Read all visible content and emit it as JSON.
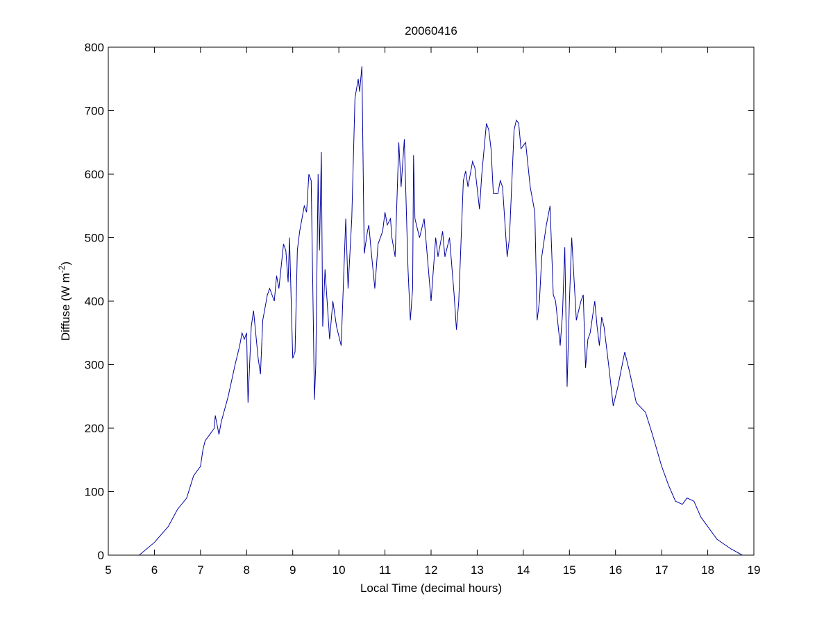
{
  "chart_data": {
    "type": "line",
    "title": "20060416",
    "xlabel": "Local Time (decimal hours)",
    "ylabel": {
      "text": "Diffuse (W m",
      "sup": "-2",
      "end": ")"
    },
    "xlim": [
      5,
      19
    ],
    "ylim": [
      0,
      800
    ],
    "xticks": [
      5,
      6,
      7,
      8,
      9,
      10,
      11,
      12,
      13,
      14,
      15,
      16,
      17,
      18,
      19
    ],
    "yticks": [
      0,
      100,
      200,
      300,
      400,
      500,
      600,
      700,
      800
    ],
    "grid": false,
    "x": [
      5.67,
      6.0,
      6.3,
      6.5,
      6.7,
      6.85,
      7.0,
      7.05,
      7.1,
      7.2,
      7.3,
      7.32,
      7.4,
      7.45,
      7.6,
      7.75,
      7.85,
      7.9,
      7.95,
      8.0,
      8.03,
      8.1,
      8.15,
      8.25,
      8.3,
      8.35,
      8.45,
      8.5,
      8.6,
      8.65,
      8.7,
      8.8,
      8.85,
      8.9,
      8.93,
      9.0,
      9.05,
      9.1,
      9.15,
      9.25,
      9.3,
      9.35,
      9.4,
      9.45,
      9.47,
      9.5,
      9.55,
      9.58,
      9.62,
      9.65,
      9.7,
      9.8,
      9.87,
      9.95,
      10.05,
      10.15,
      10.2,
      10.28,
      10.35,
      10.42,
      10.45,
      10.5,
      10.55,
      10.62,
      10.65,
      10.7,
      10.78,
      10.85,
      10.95,
      11.0,
      11.05,
      11.12,
      11.15,
      11.22,
      11.3,
      11.35,
      11.42,
      11.5,
      11.55,
      11.6,
      11.62,
      11.65,
      11.75,
      11.85,
      12.0,
      12.1,
      12.15,
      12.25,
      12.3,
      12.4,
      12.5,
      12.55,
      12.6,
      12.7,
      12.75,
      12.8,
      12.9,
      12.95,
      13.05,
      13.1,
      13.2,
      13.25,
      13.3,
      13.35,
      13.45,
      13.5,
      13.55,
      13.65,
      13.7,
      13.8,
      13.85,
      13.9,
      13.95,
      14.05,
      14.15,
      14.25,
      14.3,
      14.35,
      14.4,
      14.5,
      14.58,
      14.65,
      14.7,
      14.8,
      14.85,
      14.9,
      14.95,
      15.0,
      15.05,
      15.15,
      15.25,
      15.3,
      15.35,
      15.4,
      15.45,
      15.55,
      15.6,
      15.65,
      15.7,
      15.75,
      15.85,
      15.95,
      16.05,
      16.2,
      16.3,
      16.45,
      16.65,
      16.8,
      17.0,
      17.15,
      17.3,
      17.45,
      17.55,
      17.7,
      17.85,
      18.0,
      18.2,
      18.5,
      18.75
    ],
    "series": [
      {
        "name": "Diffuse",
        "color": "#0000a0",
        "values": [
          0,
          20,
          45,
          72,
          90,
          125,
          140,
          165,
          180,
          190,
          200,
          220,
          190,
          210,
          250,
          300,
          330,
          350,
          340,
          350,
          240,
          360,
          385,
          310,
          285,
          370,
          410,
          420,
          400,
          440,
          420,
          490,
          480,
          430,
          500,
          310,
          320,
          480,
          510,
          550,
          540,
          600,
          590,
          350,
          245,
          300,
          600,
          480,
          635,
          360,
          450,
          340,
          400,
          360,
          330,
          530,
          420,
          530,
          720,
          750,
          730,
          770,
          475,
          510,
          520,
          480,
          420,
          490,
          510,
          540,
          520,
          530,
          500,
          470,
          650,
          580,
          655,
          450,
          370,
          420,
          630,
          530,
          500,
          530,
          400,
          500,
          470,
          510,
          470,
          500,
          410,
          355,
          400,
          590,
          605,
          580,
          620,
          610,
          545,
          600,
          680,
          670,
          640,
          570,
          570,
          590,
          580,
          470,
          500,
          670,
          685,
          680,
          640,
          650,
          580,
          540,
          370,
          400,
          470,
          520,
          550,
          410,
          400,
          330,
          380,
          485,
          265,
          400,
          500,
          370,
          400,
          410,
          295,
          340,
          350,
          400,
          360,
          330,
          375,
          360,
          300,
          235,
          265,
          320,
          290,
          240,
          225,
          190,
          140,
          110,
          85,
          80,
          90,
          85,
          60,
          45,
          25,
          10,
          0
        ]
      }
    ]
  }
}
